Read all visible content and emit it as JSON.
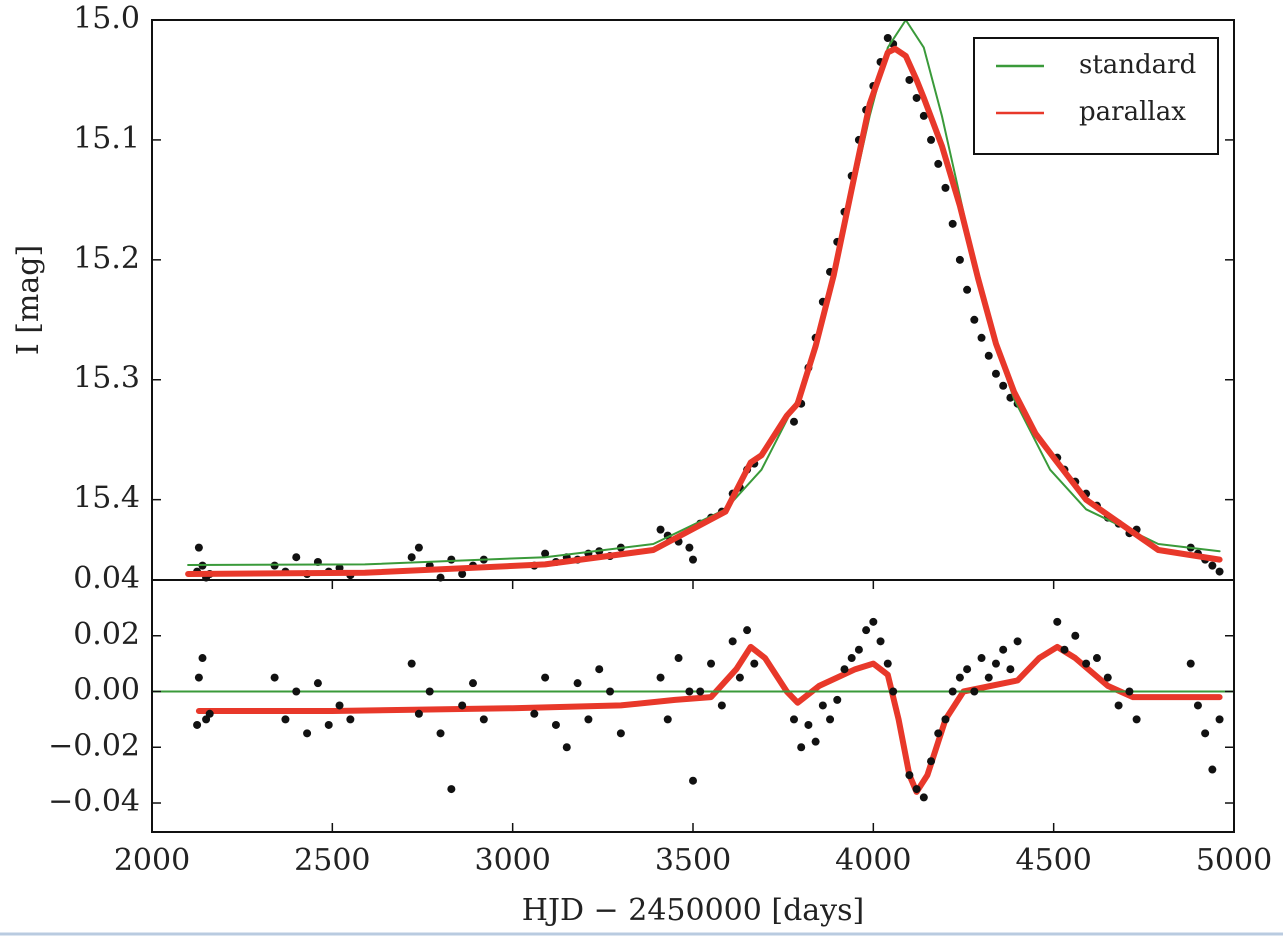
{
  "chart_data": [
    {
      "type": "scatter",
      "ylabel": "I [mag]",
      "xlim": [
        2000,
        5000
      ],
      "ylim": [
        15.467,
        15.0
      ],
      "yticks": [
        {
          "value": 15.0,
          "label": "15.0"
        },
        15.1,
        15.2,
        15.3,
        15.4
      ],
      "legend": "upper right",
      "series": [
        {
          "type": "scatter",
          "color": "#111111",
          "x": [
            2125,
            2130,
            2140,
            2150,
            2160,
            2340,
            2370,
            2400,
            2430,
            2460,
            2490,
            2520,
            2550,
            2720,
            2740,
            2770,
            2800,
            2830,
            2860,
            2890,
            2920,
            3060,
            3090,
            3120,
            3150,
            3180,
            3210,
            3240,
            3270,
            3300,
            3410,
            3430,
            3460,
            3490,
            3500,
            3520,
            3550,
            3580,
            3610,
            3630,
            3650,
            3670,
            3780,
            3800,
            3820,
            3840,
            3860,
            3880,
            3900,
            3920,
            3940,
            3960,
            3980,
            4000,
            4020,
            4040,
            4055,
            4100,
            4120,
            4140,
            4160,
            4180,
            4200,
            4220,
            4240,
            4260,
            4280,
            4300,
            4320,
            4340,
            4360,
            4380,
            4400,
            4510,
            4530,
            4560,
            4590,
            4620,
            4650,
            4680,
            4710,
            4730,
            4880,
            4900,
            4920,
            4940,
            4960
          ],
          "values": [
            15.46,
            15.44,
            15.455,
            15.465,
            15.462,
            15.455,
            15.46,
            15.448,
            15.462,
            15.452,
            15.46,
            15.457,
            15.463,
            15.448,
            15.44,
            15.455,
            15.465,
            15.45,
            15.462,
            15.455,
            15.45,
            15.455,
            15.445,
            15.452,
            15.448,
            15.45,
            15.445,
            15.443,
            15.447,
            15.44,
            15.425,
            15.43,
            15.435,
            15.44,
            15.45,
            15.42,
            15.415,
            15.41,
            15.395,
            15.39,
            15.375,
            15.37,
            15.335,
            15.32,
            15.29,
            15.265,
            15.235,
            15.21,
            15.185,
            15.16,
            15.13,
            15.1,
            15.075,
            15.055,
            15.035,
            15.015,
            15.02,
            15.05,
            15.065,
            15.08,
            15.1,
            15.12,
            15.14,
            15.17,
            15.2,
            15.225,
            15.25,
            15.265,
            15.28,
            15.295,
            15.305,
            15.315,
            15.32,
            15.365,
            15.375,
            15.385,
            15.395,
            15.405,
            15.415,
            15.42,
            15.428,
            15.425,
            15.44,
            15.445,
            15.45,
            15.455,
            15.46
          ]
        },
        {
          "type": "line",
          "name": "standard",
          "color": "#3a9a3a",
          "x": [
            2100,
            2590,
            3090,
            3390,
            3590,
            3690,
            3790,
            3840,
            3890,
            3940,
            3990,
            4040,
            4090,
            4140,
            4190,
            4240,
            4290,
            4340,
            4390,
            4490,
            4590,
            4790,
            4960
          ],
          "values": [
            15.4545,
            15.454,
            15.448,
            15.437,
            15.408,
            15.375,
            15.316,
            15.272,
            15.215,
            15.147,
            15.08,
            15.023,
            15.0,
            15.023,
            15.08,
            15.147,
            15.215,
            15.272,
            15.316,
            15.375,
            15.408,
            15.437,
            15.443
          ]
        },
        {
          "type": "line",
          "name": "parallax",
          "color": "#e8382a",
          "x": [
            2100,
            2590,
            3090,
            3390,
            3590,
            3660,
            3690,
            3760,
            3790,
            3840,
            3890,
            3940,
            3990,
            4040,
            4060,
            4090,
            4120,
            4140,
            4190,
            4240,
            4290,
            4340,
            4390,
            4450,
            4500,
            4590,
            4790,
            4960
          ],
          "values": [
            15.462,
            15.461,
            15.454,
            15.442,
            15.41,
            15.369,
            15.363,
            15.33,
            15.32,
            15.272,
            15.213,
            15.141,
            15.07,
            15.027,
            15.024,
            15.03,
            15.05,
            15.065,
            15.105,
            15.155,
            15.215,
            15.27,
            15.31,
            15.345,
            15.365,
            15.4,
            15.442,
            15.45
          ]
        }
      ]
    },
    {
      "type": "scatter",
      "xlabel": "HJD − 2450000 [days]",
      "xlim": [
        2000,
        5000
      ],
      "ylim": [
        -0.0504,
        0.04
      ],
      "xticks": [
        2000,
        2500,
        3000,
        3500,
        4000,
        4500,
        5000
      ],
      "yticks": [
        {
          "value": -0.04,
          "label": "−0.04"
        },
        {
          "value": -0.02,
          "label": "−0.02"
        },
        {
          "value": 0,
          "label": "0.00"
        },
        0.02,
        0.04
      ],
      "series": [
        {
          "type": "line",
          "color": "#e8382a",
          "x": [
            2130,
            2500,
            3000,
            3300,
            3450,
            3550,
            3620,
            3660,
            3700,
            3760,
            3790,
            3850,
            3950,
            4000,
            4040,
            4070,
            4100,
            4120,
            4150,
            4200,
            4250,
            4400,
            4460,
            4510,
            4560,
            4650,
            4720,
            4960
          ],
          "values": [
            -0.007,
            -0.007,
            -0.006,
            -0.005,
            -0.003,
            -0.002,
            0.008,
            0.016,
            0.012,
            0.0,
            -0.004,
            0.002,
            0.008,
            0.01,
            0.006,
            -0.01,
            -0.03,
            -0.036,
            -0.03,
            -0.01,
            0.0,
            0.004,
            0.012,
            0.016,
            0.012,
            0.002,
            -0.002,
            -0.002
          ]
        },
        {
          "type": "line",
          "color": "#3a9a3a",
          "x": [
            2000,
            5000
          ],
          "values": [
            0,
            0
          ]
        },
        {
          "type": "scatter",
          "color": "#111111",
          "x": [
            2125,
            2130,
            2140,
            2150,
            2160,
            2340,
            2370,
            2400,
            2430,
            2460,
            2490,
            2520,
            2550,
            2720,
            2740,
            2770,
            2800,
            2830,
            2860,
            2890,
            2920,
            3060,
            3090,
            3120,
            3150,
            3180,
            3210,
            3240,
            3270,
            3300,
            3410,
            3430,
            3460,
            3490,
            3500,
            3520,
            3550,
            3580,
            3610,
            3630,
            3650,
            3670,
            3780,
            3800,
            3820,
            3840,
            3860,
            3880,
            3900,
            3920,
            3940,
            3960,
            3980,
            4000,
            4020,
            4040,
            4055,
            4100,
            4120,
            4140,
            4160,
            4180,
            4200,
            4220,
            4240,
            4260,
            4280,
            4300,
            4320,
            4340,
            4360,
            4380,
            4400,
            4510,
            4530,
            4560,
            4590,
            4620,
            4650,
            4680,
            4710,
            4730,
            4880,
            4900,
            4920,
            4940,
            4960
          ],
          "values": [
            -0.012,
            0.005,
            0.012,
            -0.01,
            -0.008,
            0.005,
            -0.01,
            0.0,
            -0.015,
            0.003,
            -0.012,
            -0.005,
            -0.01,
            0.01,
            -0.008,
            0.0,
            -0.015,
            -0.035,
            -0.005,
            0.003,
            -0.01,
            -0.008,
            0.005,
            -0.012,
            -0.02,
            0.003,
            -0.01,
            0.008,
            0.0,
            -0.015,
            0.005,
            -0.01,
            0.012,
            0.0,
            -0.032,
            0.0,
            0.01,
            -0.005,
            0.018,
            0.005,
            0.022,
            0.01,
            -0.01,
            -0.02,
            -0.012,
            -0.018,
            -0.005,
            -0.01,
            -0.003,
            0.008,
            0.012,
            0.015,
            0.022,
            0.025,
            0.018,
            0.01,
            0.0,
            -0.03,
            -0.035,
            -0.038,
            -0.025,
            -0.015,
            -0.01,
            0.0,
            0.005,
            0.008,
            0.0,
            0.012,
            0.005,
            0.01,
            0.015,
            0.008,
            0.018,
            0.025,
            0.015,
            0.02,
            0.01,
            0.012,
            0.005,
            -0.005,
            0.0,
            -0.01,
            0.01,
            -0.005,
            -0.015,
            -0.028,
            -0.01
          ]
        }
      ]
    }
  ]
}
